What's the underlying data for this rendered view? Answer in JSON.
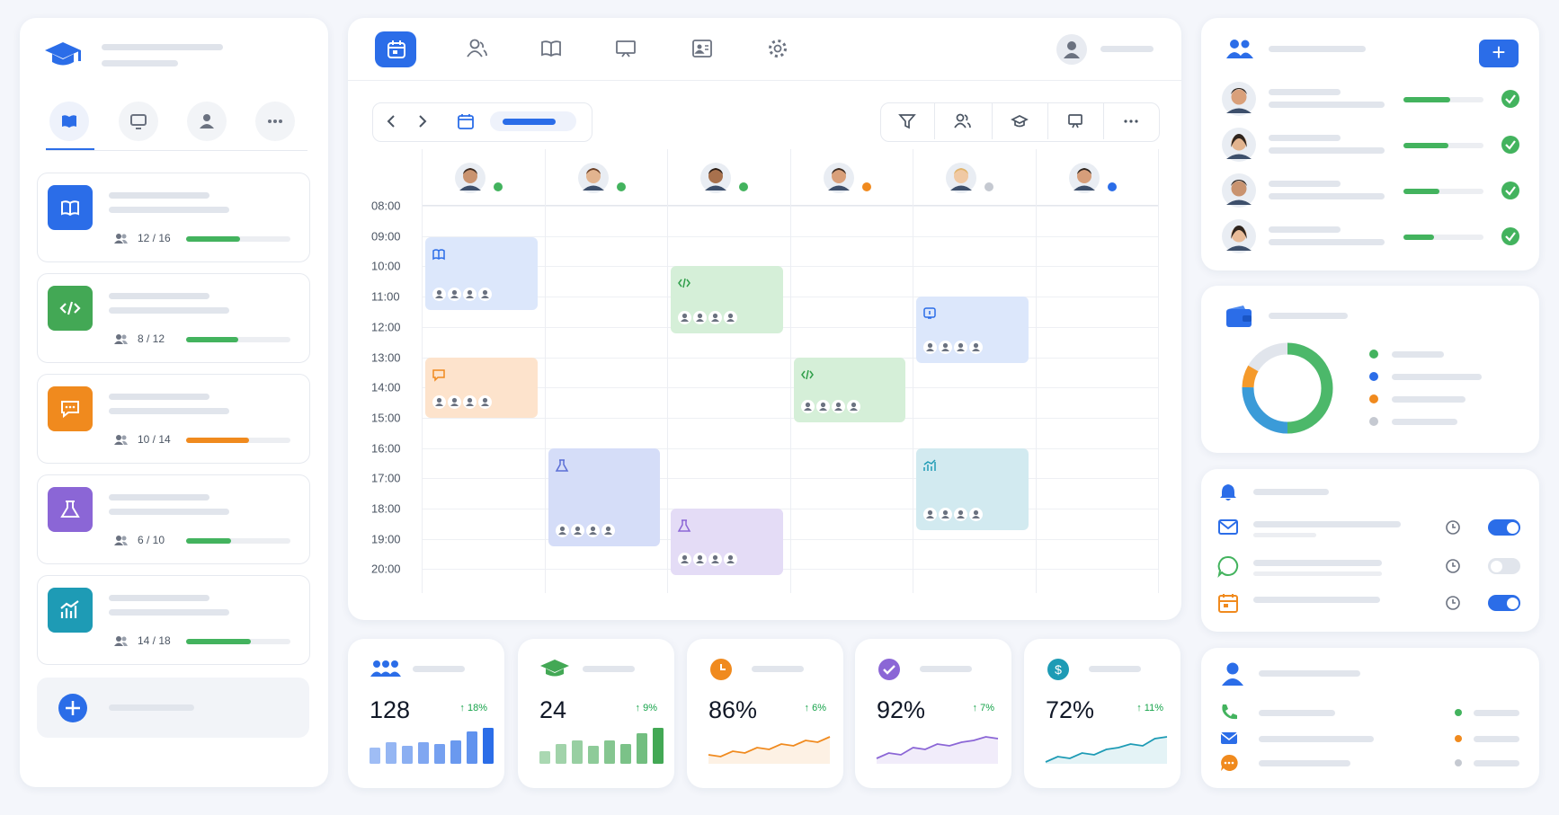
{
  "courses": [
    {
      "count": "12 / 16"
    },
    {
      "count": "8 / 12"
    },
    {
      "count": "10 / 14"
    },
    {
      "count": "6 / 10"
    },
    {
      "count": "14 / 18"
    }
  ],
  "schedule": {
    "times": [
      "08:00",
      "09:00",
      "10:00",
      "11:00",
      "12:00",
      "13:00",
      "14:00",
      "15:00",
      "16:00",
      "17:00",
      "18:00",
      "19:00",
      "20:00"
    ]
  },
  "stats": [
    {
      "value": "128",
      "change": "↑ 18%"
    },
    {
      "value": "24",
      "change": "↑ 9%"
    },
    {
      "value": "86%",
      "change": "↑ 6%"
    },
    {
      "value": "92%",
      "change": "↑ 7%"
    },
    {
      "value": "72%",
      "change": "↑ 11%"
    }
  ]
}
